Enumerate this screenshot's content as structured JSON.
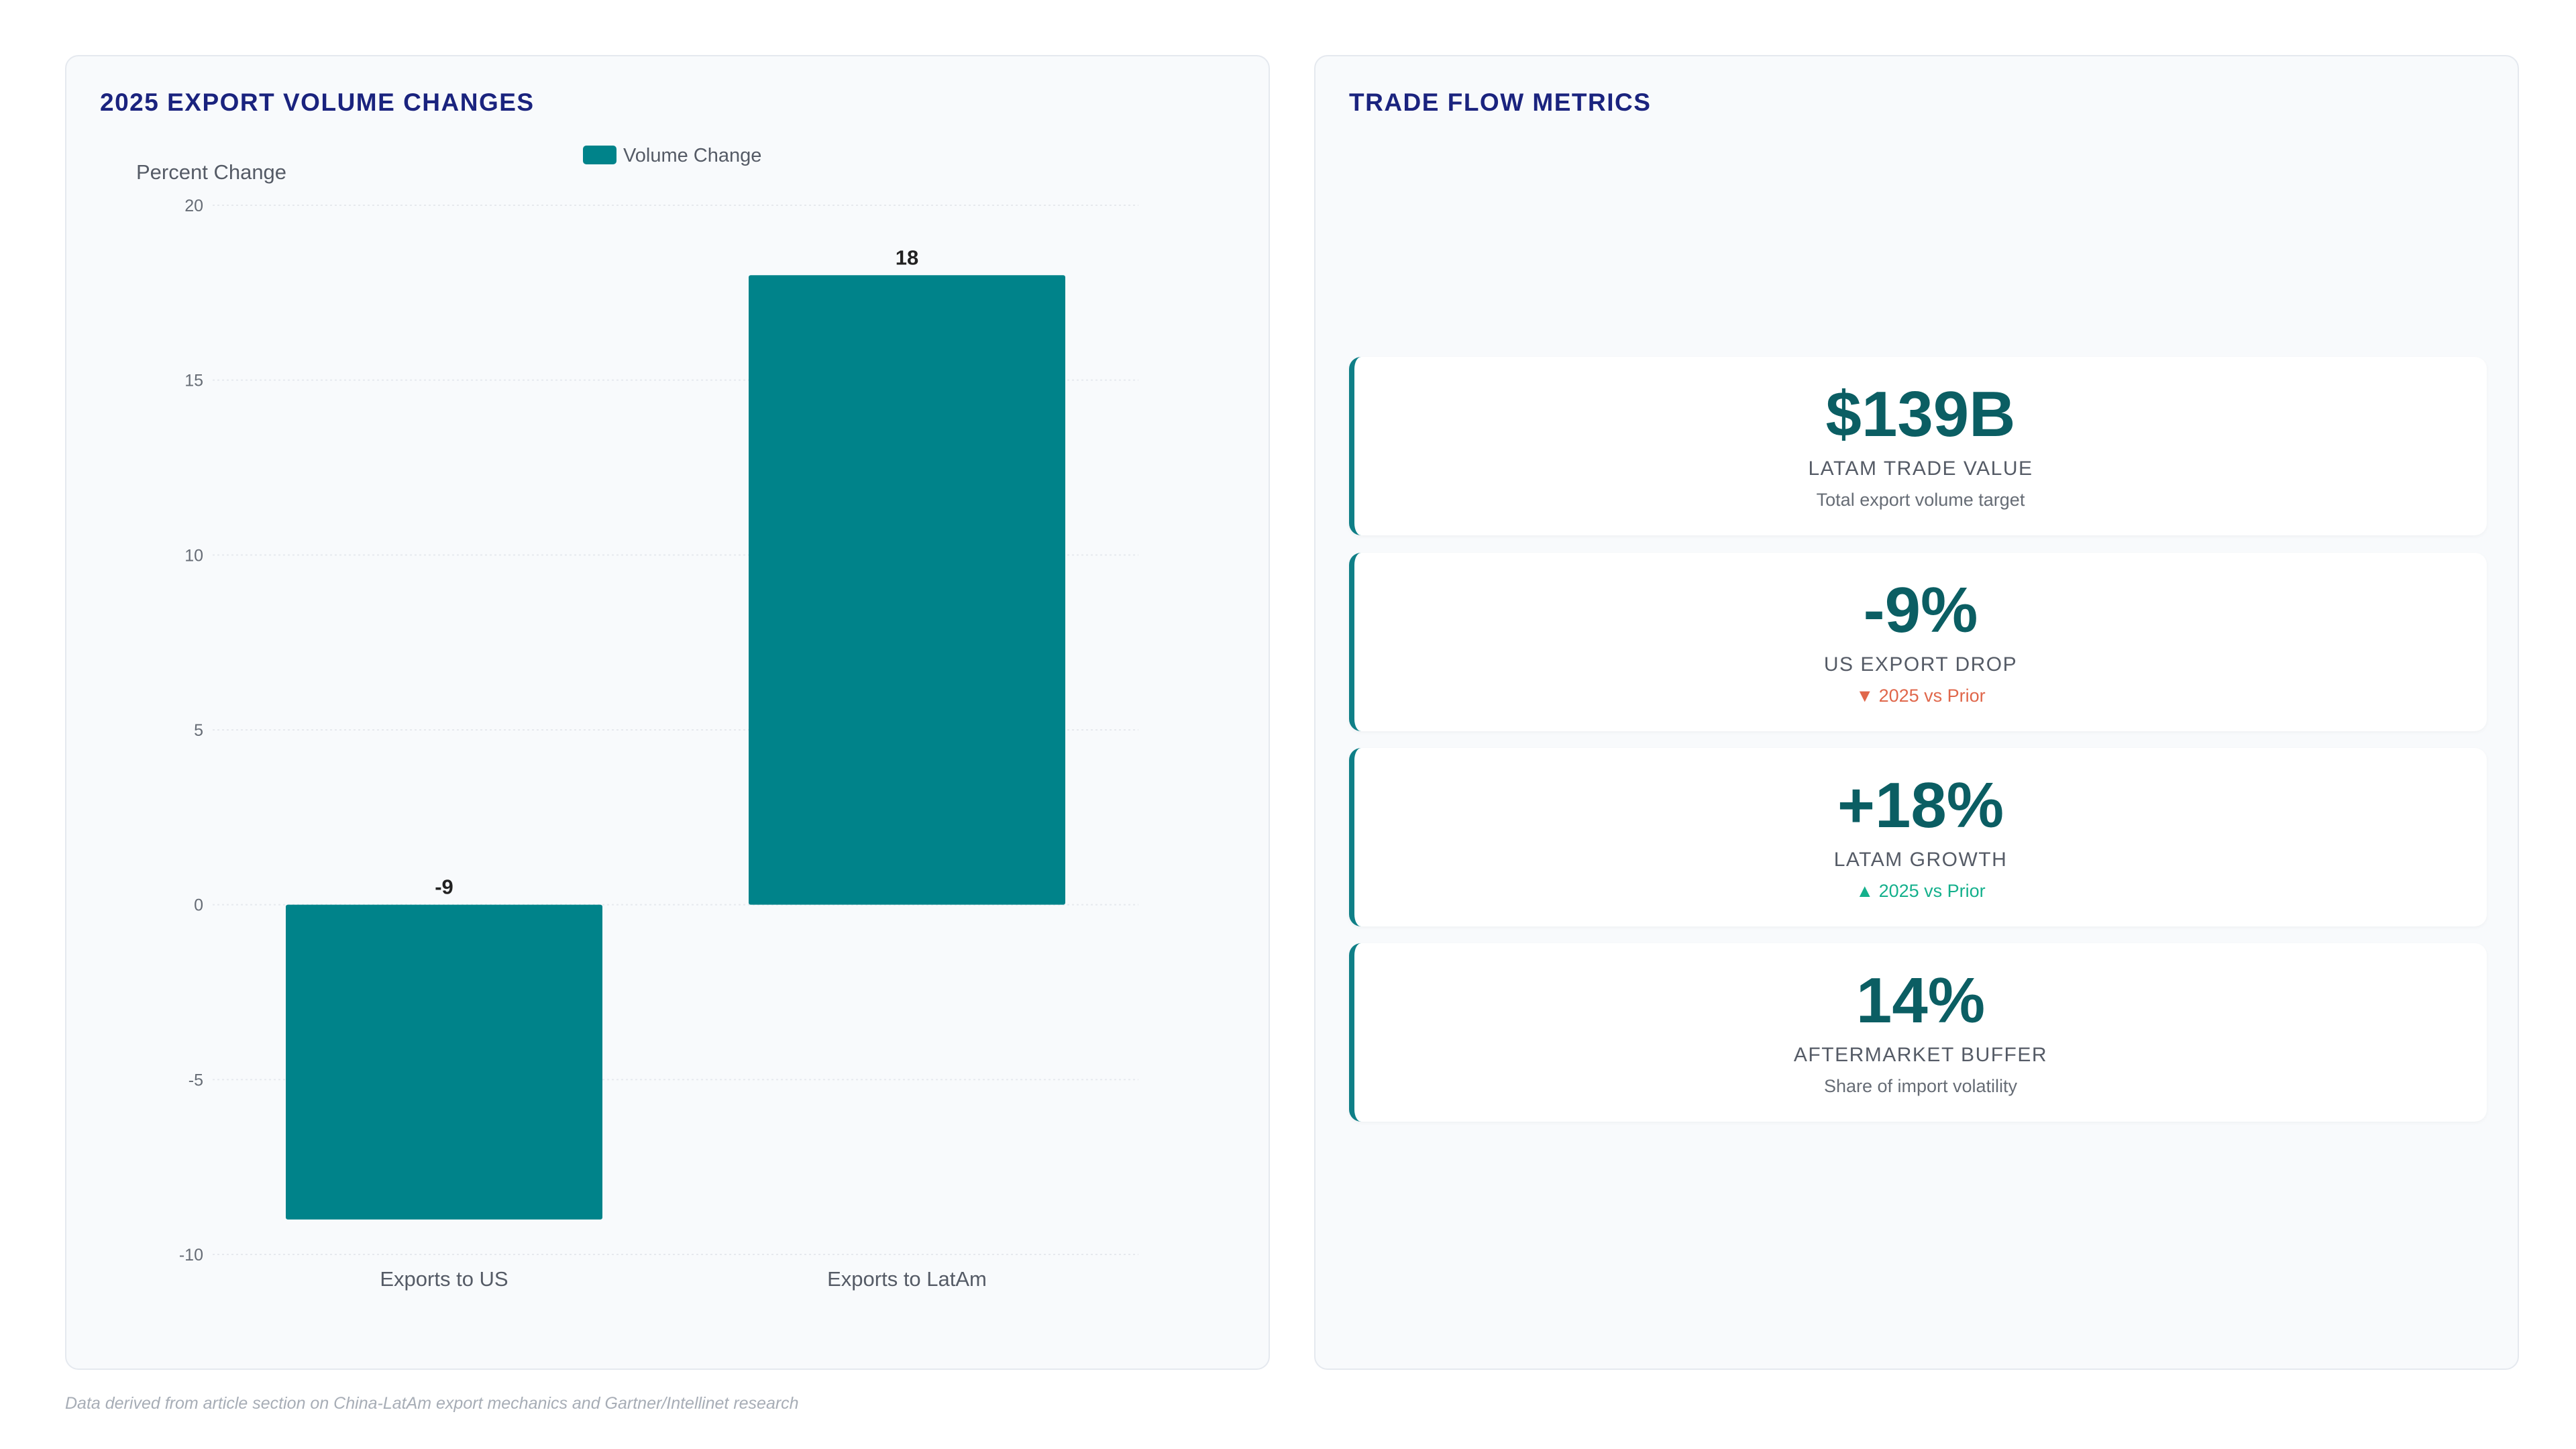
{
  "left_panel": {
    "title": "2025 EXPORT VOLUME CHANGES"
  },
  "right_panel": {
    "title": "TRADE FLOW METRICS"
  },
  "colors": {
    "bar": "#00838a",
    "title": "#1a237e",
    "metric_value": "#0b5e63",
    "down": "#e0674b",
    "up": "#14b08c"
  },
  "chart_data": {
    "type": "bar",
    "categories": [
      "Exports to US",
      "Exports to LatAm"
    ],
    "series": [
      {
        "name": "Volume Change",
        "values": [
          -9,
          18
        ]
      }
    ],
    "ylabel": "Percent Change",
    "ylim": [
      -10,
      20
    ],
    "yticks": [
      20,
      15,
      10,
      5,
      0,
      -5,
      -10
    ],
    "data_labels": [
      "-9",
      "18"
    ],
    "legend_position": "top-center",
    "grid": true
  },
  "metrics": [
    {
      "value": "$139B",
      "label": "LATAM TRADE VALUE",
      "sub": "Total export volume target",
      "trend": "neutral"
    },
    {
      "value": "-9%",
      "label": "US EXPORT DROP",
      "sub": "▼ 2025 vs Prior",
      "trend": "down"
    },
    {
      "value": "+18%",
      "label": "LATAM GROWTH",
      "sub": "▲ 2025 vs Prior",
      "trend": "up"
    },
    {
      "value": "14%",
      "label": "AFTERMARKET BUFFER",
      "sub": "Share of import volatility",
      "trend": "neutral"
    }
  ],
  "footnote": "Data derived from article section on China-LatAm export mechanics and Gartner/Intellinet research"
}
